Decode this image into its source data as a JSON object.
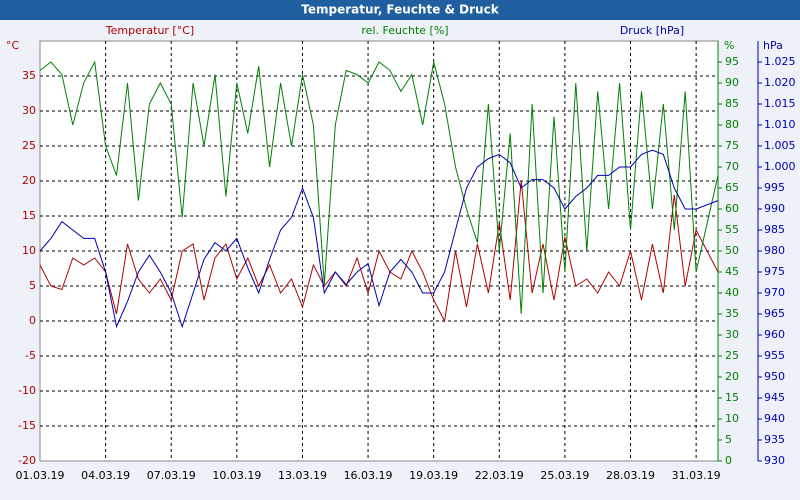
{
  "chart_data": {
    "type": "line",
    "title": "Temperatur, Feuchte & Druck",
    "x": [
      0,
      0.5,
      1,
      1.5,
      2,
      2.5,
      3,
      3.5,
      4,
      4.5,
      5,
      5.5,
      6,
      6.5,
      7,
      7.5,
      8,
      8.5,
      9,
      9.5,
      10,
      10.5,
      11,
      11.5,
      12,
      12.5,
      13,
      13.5,
      14,
      14.5,
      15,
      15.5,
      16,
      16.5,
      17,
      17.5,
      18,
      18.5,
      19,
      19.5,
      20,
      20.5,
      21,
      21.5,
      22,
      22.5,
      23,
      23.5,
      24,
      24.5,
      25,
      25.5,
      26,
      26.5,
      27,
      27.5,
      28,
      28.5,
      29,
      29.5,
      30,
      31
    ],
    "xlim": [
      0,
      31
    ],
    "xticks": [
      {
        "value": 0,
        "label": "01.03.19"
      },
      {
        "value": 3,
        "label": "04.03.19"
      },
      {
        "value": 6,
        "label": "07.03.19"
      },
      {
        "value": 9,
        "label": "10.03.19"
      },
      {
        "value": 12,
        "label": "13.03.19"
      },
      {
        "value": 15,
        "label": "16.03.19"
      },
      {
        "value": 18,
        "label": "19.03.19"
      },
      {
        "value": 21,
        "label": "22.03.19"
      },
      {
        "value": 24,
        "label": "25.03.19"
      },
      {
        "value": 27,
        "label": "28.03.19"
      },
      {
        "value": 30,
        "label": "31.03.19"
      }
    ],
    "ylabel": "°C",
    "ylim": [
      -20,
      40
    ],
    "yticks": [
      -20,
      -15,
      -10,
      -5,
      0,
      5,
      10,
      15,
      20,
      25,
      30,
      35
    ],
    "y2label": "%",
    "y2lim": [
      0,
      100
    ],
    "y2ticks": [
      0,
      5,
      10,
      15,
      20,
      25,
      30,
      35,
      40,
      45,
      50,
      55,
      60,
      65,
      70,
      75,
      80,
      85,
      90,
      95
    ],
    "y3label": "hPa",
    "y3lim": [
      930,
      1030
    ],
    "y3ticks": [
      930,
      935,
      940,
      945,
      950,
      955,
      960,
      965,
      970,
      975,
      980,
      985,
      990,
      995,
      {
        "value": 1000,
        "label": "1.000"
      },
      {
        "value": 1005,
        "label": "1.005"
      },
      {
        "value": 1010,
        "label": "1.010"
      },
      {
        "value": 1015,
        "label": "1.015"
      },
      {
        "value": 1020,
        "label": "1.020"
      },
      {
        "value": 1025,
        "label": "1.025"
      }
    ],
    "grid": true,
    "series": [
      {
        "name": "Temperatur [°C]",
        "color": "#b00000",
        "axis": "y",
        "values": [
          8,
          5,
          4.5,
          9,
          8,
          9,
          7,
          1,
          11,
          6,
          4,
          6,
          3,
          10,
          11,
          3,
          9,
          11,
          6,
          9,
          5,
          8,
          4,
          6,
          2,
          8,
          5,
          7,
          5,
          9,
          4,
          10,
          7,
          6,
          10,
          7,
          3,
          0,
          10,
          2,
          11,
          4,
          14,
          3,
          20,
          4,
          11,
          3,
          12,
          5,
          6,
          4,
          7,
          5,
          10,
          3,
          11,
          4,
          18,
          5,
          13,
          7
        ]
      },
      {
        "name": "rel. Feuchte [%]",
        "color": "#008000",
        "axis": "y2",
        "values": [
          93,
          95,
          92,
          80,
          90,
          95,
          75,
          68,
          90,
          62,
          85,
          90,
          85,
          58,
          90,
          75,
          92,
          63,
          90,
          78,
          94,
          70,
          90,
          75,
          92,
          80,
          42,
          80,
          93,
          92,
          90,
          95,
          93,
          88,
          92,
          80,
          95,
          85,
          70,
          60,
          52,
          85,
          50,
          78,
          35,
          85,
          40,
          82,
          45,
          90,
          50,
          88,
          60,
          90,
          55,
          88,
          60,
          85,
          55,
          88,
          45,
          68
        ]
      },
      {
        "name": "Druck [hPa]",
        "color": "#0000b0",
        "axis": "y3",
        "values": [
          980,
          983,
          987,
          985,
          983,
          983,
          975,
          962,
          968,
          975,
          979,
          975,
          970,
          962,
          970,
          978,
          982,
          980,
          983,
          976,
          970,
          978,
          985,
          988,
          995,
          988,
          970,
          975,
          972,
          975,
          977,
          967,
          975,
          978,
          975,
          970,
          970,
          975,
          985,
          995,
          1000,
          1002,
          1003,
          1001,
          995,
          997,
          997,
          995,
          990,
          993,
          995,
          998,
          998,
          1000,
          1000,
          1003,
          1004,
          1003,
          995,
          990,
          990,
          992
        ]
      }
    ]
  }
}
